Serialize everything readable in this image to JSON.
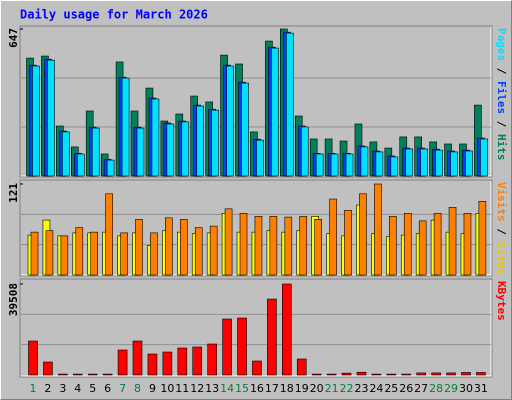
{
  "chart_data": [
    {
      "type": "bar",
      "title": "Daily usage for March 2026",
      "ylim": [
        0,
        647
      ],
      "yticks": [
        647
      ],
      "separator": " / ",
      "series": [
        {
          "name": "Hits",
          "color": "#00805c",
          "values": [
            519,
            528,
            220,
            128,
            286,
            97,
            502,
            286,
            387,
            242,
            273,
            352,
            326,
            532,
            493,
            194,
            594,
            647,
            264,
            163,
            163,
            154,
            229,
            150,
            123,
            172,
            172,
            150,
            141,
            141,
            312
          ]
        },
        {
          "name": "Files",
          "color": "#0040ff",
          "values": [
            488,
            514,
            198,
            100,
            215,
            73,
            435,
            215,
            343,
            233,
            242,
            312,
            294,
            488,
            413,
            162,
            567,
            633,
            220,
            100,
            100,
            100,
            132,
            110,
            88,
            123,
            123,
            118,
            110,
            114,
            167
          ]
        },
        {
          "name": "Pages",
          "color": "#00e0ff",
          "values": [
            484,
            510,
            194,
            97,
            211,
            70,
            431,
            211,
            339,
            229,
            238,
            308,
            290,
            484,
            409,
            158,
            563,
            629,
            216,
            97,
            97,
            97,
            128,
            106,
            84,
            119,
            119,
            114,
            106,
            110,
            163
          ]
        }
      ]
    },
    {
      "type": "bar",
      "ylim": [
        0,
        121
      ],
      "yticks": [
        121
      ],
      "separator": " / ",
      "series": [
        {
          "name": "Sites",
          "color": "#ffff00",
          "values": [
            53,
            73,
            52,
            56,
            56,
            57,
            52,
            56,
            39,
            59,
            57,
            55,
            56,
            82,
            57,
            57,
            59,
            57,
            59,
            78,
            55,
            52,
            93,
            55,
            51,
            53,
            55,
            73,
            57,
            55,
            82
          ]
        },
        {
          "name": "Visits",
          "color": "#ff8000",
          "values": [
            57,
            59,
            52,
            63,
            57,
            108,
            56,
            74,
            56,
            76,
            74,
            63,
            65,
            88,
            82,
            78,
            78,
            77,
            78,
            74,
            101,
            86,
            108,
            121,
            78,
            82,
            72,
            82,
            90,
            82,
            98
          ]
        }
      ]
    },
    {
      "type": "bar",
      "ylim": [
        0,
        39508
      ],
      "yticks": [
        39508
      ],
      "categories": [
        "1",
        "2",
        "3",
        "4",
        "5",
        "6",
        "7",
        "8",
        "9",
        "10",
        "11",
        "12",
        "13",
        "14",
        "15",
        "16",
        "17",
        "18",
        "19",
        "20",
        "21",
        "22",
        "23",
        "24",
        "25",
        "26",
        "27",
        "28",
        "29",
        "30",
        "31"
      ],
      "category_colors": [
        "#008040",
        "#000000",
        "#000000",
        "#000000",
        "#000000",
        "#000000",
        "#008040",
        "#008040",
        "#000000",
        "#000000",
        "#000000",
        "#000000",
        "#000000",
        "#008040",
        "#008040",
        "#000000",
        "#000000",
        "#000000",
        "#000000",
        "#000000",
        "#008040",
        "#008040",
        "#000000",
        "#000000",
        "#000000",
        "#000000",
        "#000000",
        "#008040",
        "#008040",
        "#000000",
        "#000000"
      ],
      "series": [
        {
          "name": "KBytes",
          "color": "#ff0000",
          "values": [
            14756,
            5642,
            400,
            400,
            400,
            400,
            10850,
            14756,
            9114,
            9982,
            11718,
            12152,
            13454,
            24304,
            24738,
            6076,
            32984,
            39508,
            6944,
            400,
            400,
            800,
            1200,
            400,
            400,
            400,
            900,
            900,
            900,
            1100,
            1100
          ]
        }
      ]
    }
  ]
}
